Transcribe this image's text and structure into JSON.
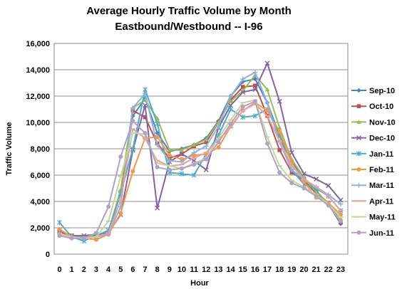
{
  "chart_data": {
    "type": "line",
    "title": "Average Hourly Traffic Volume by Month",
    "subtitle": "Eastbound/Westbound -- I-96",
    "xlabel": "Hour",
    "ylabel": "Traffic Volume",
    "x": [
      0,
      1,
      2,
      3,
      4,
      5,
      6,
      7,
      8,
      9,
      10,
      11,
      12,
      13,
      14,
      15,
      16,
      17,
      18,
      19,
      20,
      21,
      22,
      23
    ],
    "ylim": [
      0,
      16000
    ],
    "yticks": [
      0,
      2000,
      4000,
      6000,
      8000,
      10000,
      12000,
      14000,
      16000
    ],
    "ytick_labels": [
      "0",
      "2,000",
      "4,000",
      "6,000",
      "8,000",
      "10,000",
      "12,000",
      "14,000",
      "16,000"
    ],
    "grid": "horizontal",
    "legend_position": "right",
    "series": [
      {
        "name": "Sep-10",
        "color": "#4f81bd",
        "marker": "diamond",
        "values": [
          1700,
          1400,
          1200,
          1300,
          1600,
          4800,
          10500,
          11800,
          9200,
          7800,
          8000,
          8300,
          8800,
          10100,
          12000,
          13100,
          13300,
          11500,
          9000,
          7000,
          5800,
          4800,
          3800,
          2300
        ]
      },
      {
        "name": "Oct-10",
        "color": "#c0504d",
        "marker": "square",
        "values": [
          1700,
          1400,
          1200,
          1300,
          1600,
          4700,
          10900,
          10400,
          8400,
          7300,
          7600,
          8200,
          8500,
          10000,
          11700,
          12700,
          12800,
          10500,
          7900,
          6200,
          5600,
          4600,
          3900,
          2400
        ]
      },
      {
        "name": "Nov-10",
        "color": "#9bbb59",
        "marker": "triangle",
        "values": [
          1700,
          1400,
          1300,
          1400,
          1700,
          4900,
          11100,
          11700,
          10300,
          7900,
          7900,
          8300,
          8700,
          10000,
          11600,
          12400,
          13600,
          12500,
          9600,
          7200,
          5800,
          4700,
          3900,
          2700
        ]
      },
      {
        "name": "Dec-10",
        "color": "#8064a2",
        "marker": "x",
        "values": [
          1700,
          1400,
          1400,
          1500,
          1600,
          3000,
          7900,
          11300,
          3500,
          7000,
          7600,
          7100,
          6400,
          9600,
          11300,
          12300,
          12500,
          14500,
          11600,
          7700,
          6100,
          5700,
          5200,
          4100
        ]
      },
      {
        "name": "Jan-11",
        "color": "#4bacc6",
        "marker": "star",
        "values": [
          2400,
          1300,
          1000,
          1400,
          1800,
          4600,
          8000,
          12500,
          9900,
          6200,
          6100,
          6000,
          7600,
          9000,
          11000,
          10400,
          10500,
          11000,
          9000,
          6400,
          5300,
          5000,
          4400,
          3300
        ]
      },
      {
        "name": "Feb-11",
        "color": "#f79646",
        "marker": "circle",
        "values": [
          1900,
          1300,
          1200,
          1100,
          1500,
          3100,
          6300,
          8800,
          8900,
          7500,
          7200,
          7500,
          7600,
          8100,
          9700,
          10900,
          11500,
          10900,
          9300,
          6900,
          5500,
          4300,
          3900,
          3000
        ]
      },
      {
        "name": "Mar-11",
        "color": "#8db3d9",
        "marker": "plus",
        "values": [
          1600,
          1300,
          1200,
          1300,
          1500,
          3600,
          11100,
          12200,
          8300,
          7100,
          7000,
          7700,
          8200,
          9700,
          12000,
          13300,
          13800,
          11500,
          8500,
          6400,
          5700,
          5100,
          4500,
          3800
        ]
      },
      {
        "name": "Apr-11",
        "color": "#e6a1a0",
        "marker": "dash",
        "values": [
          1600,
          1300,
          1200,
          1300,
          1600,
          4100,
          9500,
          8800,
          7100,
          6700,
          6800,
          7300,
          7700,
          8700,
          9600,
          10900,
          11400,
          10500,
          8600,
          6700,
          5700,
          5100,
          4400,
          3300
        ]
      },
      {
        "name": "May-11",
        "color": "#c3d69b",
        "marker": "dash",
        "values": [
          1500,
          1300,
          1200,
          1300,
          2500,
          5900,
          9200,
          9100,
          6900,
          6700,
          6500,
          6900,
          7300,
          8800,
          10200,
          11500,
          11700,
          8900,
          6700,
          5600,
          5100,
          4500,
          3800,
          2800
        ]
      },
      {
        "name": "Jun-11",
        "color": "#b2a1c7",
        "marker": "circle",
        "values": [
          1400,
          1200,
          1200,
          1600,
          3600,
          7400,
          10100,
          9200,
          6600,
          6400,
          6500,
          6800,
          7200,
          8500,
          9900,
          11200,
          11600,
          8400,
          6200,
          5400,
          5000,
          4400,
          3700,
          2500
        ]
      }
    ]
  }
}
